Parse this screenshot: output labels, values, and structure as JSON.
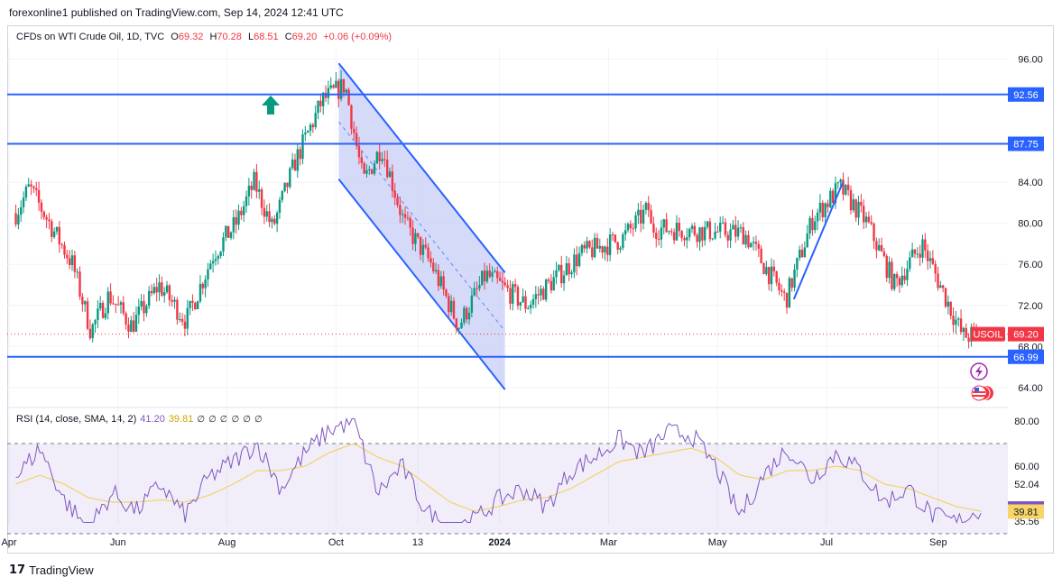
{
  "header": {
    "publisher": "forexonline1 published on TradingView.com, Sep 14, 2024 12:41 UTC"
  },
  "legend": {
    "instrument": "CFDs on WTI Crude Oil, 1D, TVC",
    "open_label": "O",
    "open": "69.32",
    "high_label": "H",
    "high": "70.28",
    "low_label": "L",
    "low": "68.51",
    "close_label": "C",
    "close": "69.20",
    "change": "+0.06 (+0.09%)"
  },
  "rsi_legend": {
    "label": "RSI (14, close, SMA, 14, 2)",
    "rsi_value": "41.20",
    "sma_value": "39.81",
    "hidden_markers": [
      "∅",
      "∅",
      "∅",
      "∅",
      "∅",
      "∅"
    ]
  },
  "footer": {
    "logo_glyph": "17",
    "brand": "TradingView"
  },
  "colors": {
    "up": "#089981",
    "down": "#f23645",
    "level_line": "#2962ff",
    "channel_fill": "#c5cbf7",
    "rsi": "#7e57c2",
    "rsi_sma": "#f0d36a",
    "rsi_band": "#ede7f6"
  },
  "chart_data": [
    {
      "type": "candlestick",
      "symbol": "USOIL",
      "timeframe": "1D",
      "x_tick_labels": [
        "Apr",
        "Jun",
        "Aug",
        "Oct",
        "13",
        "2024",
        "Mar",
        "May",
        "Jul",
        "Sep"
      ],
      "y_tick_labels": [
        "96.00",
        "84.00",
        "80.00",
        "76.00",
        "72.00",
        "68.00",
        "64.00"
      ],
      "ylim": [
        62.4,
        97.2
      ],
      "horizontal_levels": [
        {
          "label": "92.56",
          "value": 92.56
        },
        {
          "label": "87.75",
          "value": 87.75
        },
        {
          "label": "66.99",
          "value": 66.99
        }
      ],
      "last_price": {
        "label": "USOIL",
        "value": "69.20"
      },
      "annotations": [
        "up-arrow",
        "descending-channel",
        "rising-trendline"
      ],
      "approx_path": [
        {
          "x": "Apr",
          "y": 81.0
        },
        {
          "x": "Apr",
          "y": 83.5
        },
        {
          "x": "May",
          "y": 76.0
        },
        {
          "x": "May",
          "y": 69.5
        },
        {
          "x": "May",
          "y": 73.0
        },
        {
          "x": "Jun",
          "y": 70.0
        },
        {
          "x": "Jun",
          "y": 74.0
        },
        {
          "x": "Jul",
          "y": 70.5
        },
        {
          "x": "Jul",
          "y": 77.0
        },
        {
          "x": "Aug",
          "y": 80.0
        },
        {
          "x": "Aug",
          "y": 84.0
        },
        {
          "x": "Aug",
          "y": 79.5
        },
        {
          "x": "Sep",
          "y": 86.0
        },
        {
          "x": "Sep",
          "y": 92.0
        },
        {
          "x": "Oct",
          "y": 93.5
        },
        {
          "x": "Oct",
          "y": 84.0
        },
        {
          "x": "Oct",
          "y": 87.5
        },
        {
          "x": "Nov",
          "y": 80.0
        },
        {
          "x": "Nov",
          "y": 76.0
        },
        {
          "x": "Dec",
          "y": 70.0
        },
        {
          "x": "Dec",
          "y": 75.0
        },
        {
          "x": "2024",
          "y": 72.0
        },
        {
          "x": "Feb",
          "y": 77.0
        },
        {
          "x": "Mar",
          "y": 78.5
        },
        {
          "x": "Mar",
          "y": 81.5
        },
        {
          "x": "Apr",
          "y": 86.5
        },
        {
          "x": "Apr",
          "y": 83.0
        },
        {
          "x": "May",
          "y": 79.0
        },
        {
          "x": "Jun",
          "y": 72.5
        },
        {
          "x": "Jun",
          "y": 80.5
        },
        {
          "x": "Jul",
          "y": 83.5
        },
        {
          "x": "Jul",
          "y": 80.0
        },
        {
          "x": "Aug",
          "y": 74.0
        },
        {
          "x": "Aug",
          "y": 78.0
        },
        {
          "x": "Sep",
          "y": 73.0
        },
        {
          "x": "Sep",
          "y": 69.0
        },
        {
          "x": "Sep",
          "y": 69.2
        }
      ]
    },
    {
      "type": "line",
      "title": "RSI (14, close, SMA, 14, 2)",
      "y_tick_labels": [
        "80.00",
        "60.00",
        "52.04",
        "35.56"
      ],
      "ylim": [
        34,
        82
      ],
      "bands": [
        70,
        30
      ],
      "current": {
        "rsi": "41.20",
        "sma": "39.81"
      },
      "series": [
        {
          "name": "RSI",
          "values": [
            55,
            68,
            45,
            32,
            48,
            40,
            52,
            38,
            55,
            62,
            70,
            50,
            66,
            76,
            80,
            48,
            60,
            40,
            32,
            36,
            45,
            50,
            42,
            58,
            64,
            72,
            65,
            75,
            74,
            60,
            38,
            56,
            68,
            54,
            66,
            58,
            44,
            50,
            38,
            35,
            41
          ]
        },
        {
          "name": "SMA",
          "values": [
            52,
            56,
            52,
            46,
            44,
            44,
            45,
            44,
            47,
            52,
            58,
            58,
            60,
            66,
            70,
            64,
            60,
            52,
            44,
            40,
            42,
            45,
            46,
            50,
            56,
            62,
            64,
            66,
            68,
            64,
            56,
            54,
            58,
            58,
            60,
            58,
            52,
            50,
            46,
            42,
            40
          ]
        }
      ]
    }
  ]
}
